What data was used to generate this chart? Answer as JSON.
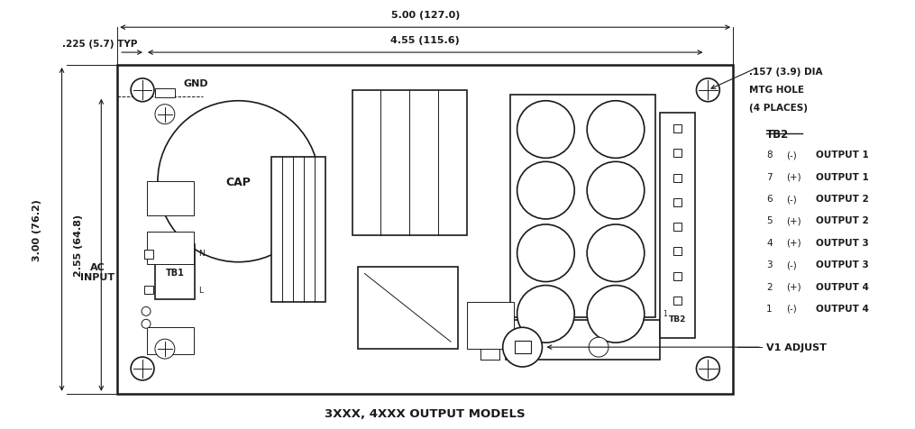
{
  "fig_width": 10.15,
  "fig_height": 4.77,
  "bg_color": "#ffffff",
  "line_color": "#1a1a1a",
  "title_text": "3XXX, 4XXX OUTPUT MODELS",
  "dim_5_00": "5.00 (127.0)",
  "dim_4_55": "4.55 (115.6)",
  "dim_225": ".225 (5.7) TYP",
  "dim_300": "3.00 (76.2)",
  "dim_255": "2.55 (64.8)",
  "dim_mtg_line1": ".157 (3.9) DIA",
  "dim_mtg_line2": "MTG HOLE",
  "dim_mtg_line3": "(4 PLACES)",
  "label_gnd": "GND",
  "label_ac_input": "AC\nINPUT",
  "label_tb1": "TB1",
  "label_tb2_side": "TB2",
  "label_tb2_list": "TB2",
  "label_cap": "CAP",
  "label_v1": "V1 ADJUST",
  "tb2_entries": [
    [
      "8",
      "(-)",
      "OUTPUT 1"
    ],
    [
      "7",
      "(+)",
      "OUTPUT 1"
    ],
    [
      "6",
      "(-)",
      "OUTPUT 2"
    ],
    [
      "5",
      "(+)",
      "OUTPUT 2"
    ],
    [
      "4",
      "(+)",
      "OUTPUT 3"
    ],
    [
      "3",
      "(-)",
      "OUTPUT 3"
    ],
    [
      "2",
      "(+)",
      "OUTPUT 4"
    ],
    [
      "1",
      "(-)",
      "OUTPUT 4"
    ]
  ]
}
